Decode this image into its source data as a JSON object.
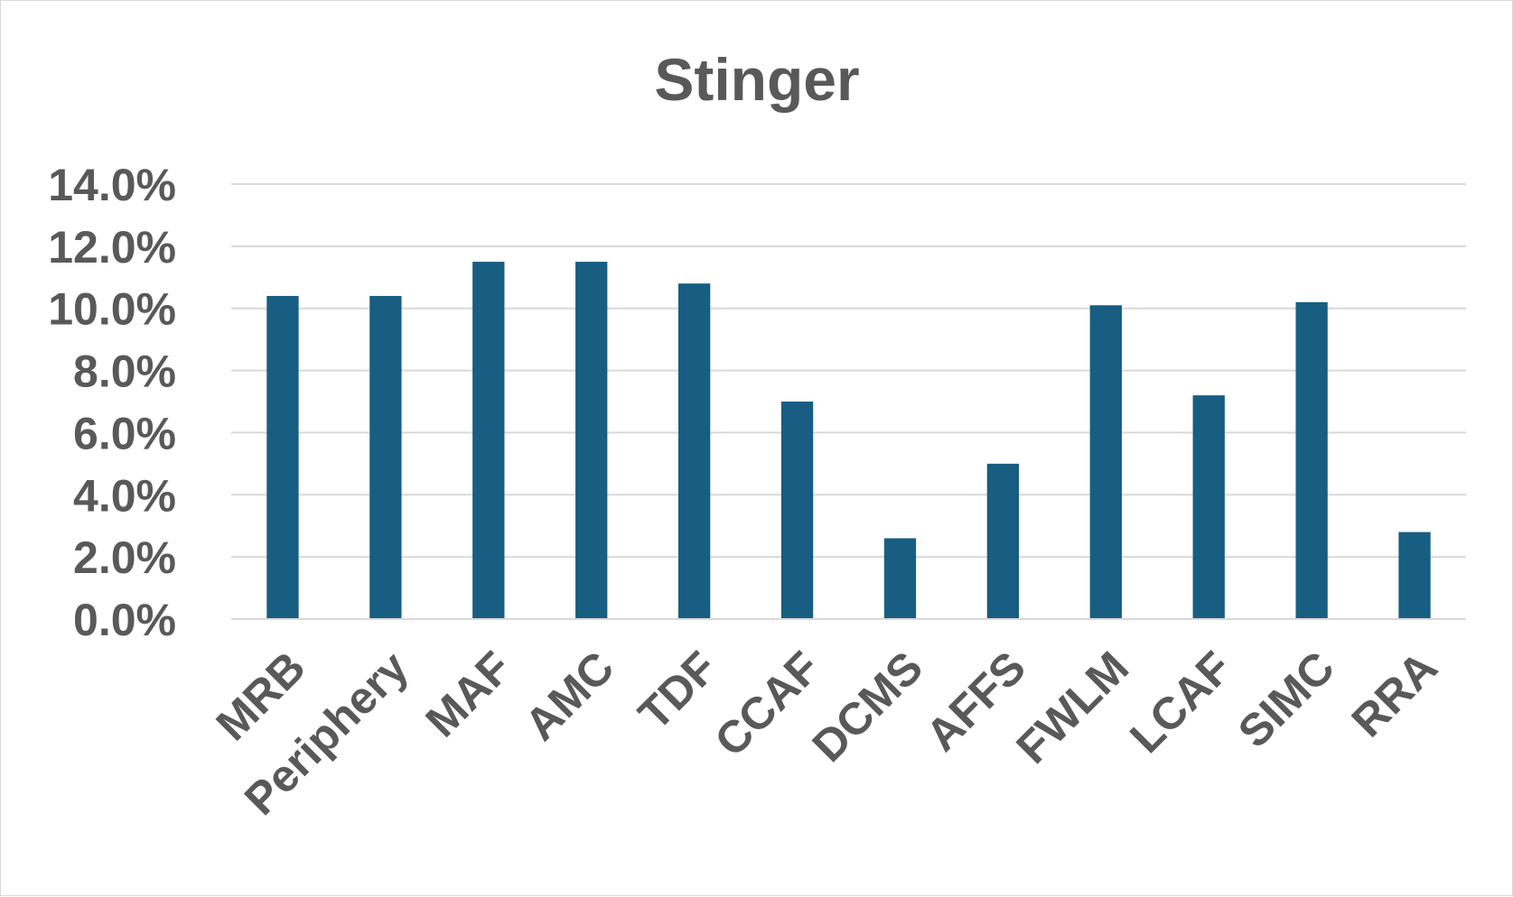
{
  "chart_data": {
    "type": "bar",
    "title": "Stinger",
    "xlabel": "",
    "ylabel": "",
    "ylim": [
      0,
      14
    ],
    "yticks": [
      0,
      2,
      4,
      6,
      8,
      10,
      12,
      14
    ],
    "ytick_labels": [
      "0.0%",
      "2.0%",
      "4.0%",
      "6.0%",
      "8.0%",
      "10.0%",
      "12.0%",
      "14.0%"
    ],
    "categories": [
      "MRB",
      "Periphery",
      "MAF",
      "AMC",
      "TDF",
      "CCAF",
      "DCMS",
      "AFFS",
      "FWLM",
      "LCAF",
      "SIMC",
      "RRA"
    ],
    "values": [
      10.4,
      10.4,
      11.5,
      11.5,
      10.8,
      7.0,
      2.6,
      5.0,
      10.1,
      7.2,
      10.2,
      2.8
    ],
    "grid": true,
    "legend": "none",
    "bar_color": "#175e82"
  }
}
